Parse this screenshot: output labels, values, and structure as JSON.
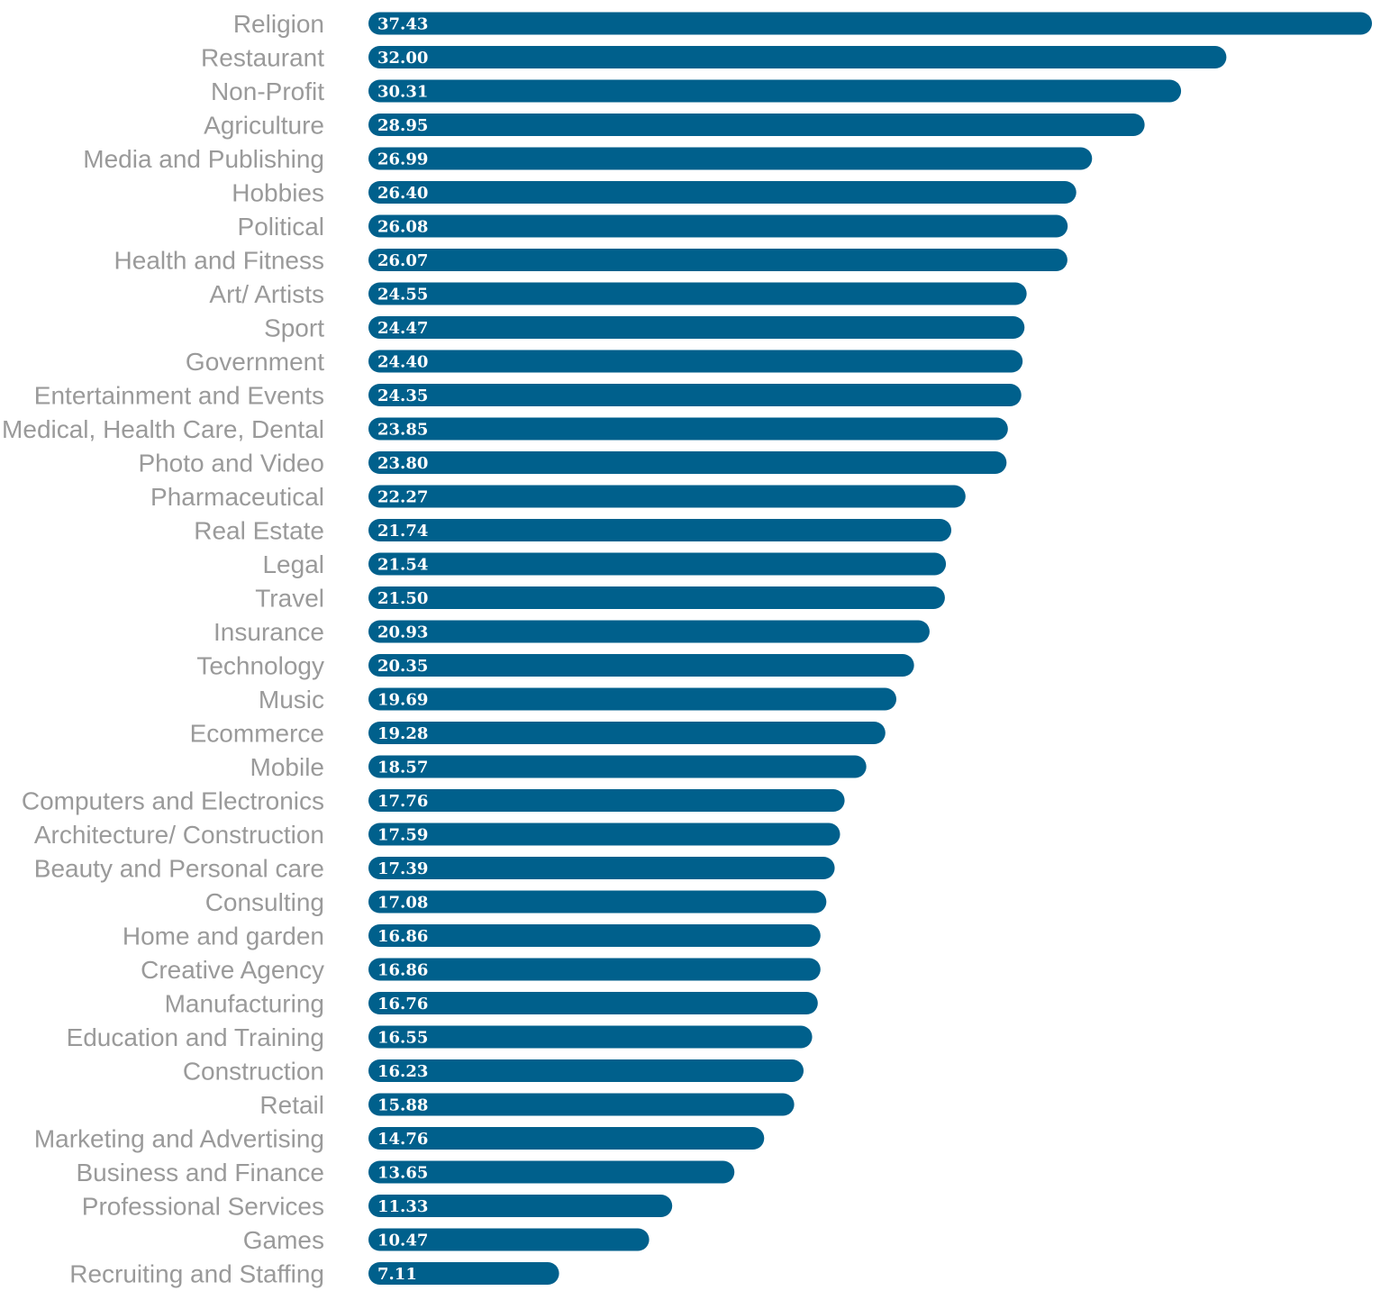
{
  "chart_data": {
    "type": "bar",
    "orientation": "horizontal",
    "title": "",
    "xlabel": "",
    "ylabel": "",
    "grid": false,
    "legend": "none",
    "bar_color": "#00608C",
    "label_color": "#9A9A9A",
    "value_label_color": "#FFFFFF",
    "xlim": [
      0,
      37.43
    ],
    "categories": [
      "Religion",
      "Restaurant",
      "Non-Profit",
      "Agriculture",
      "Media and Publishing",
      "Hobbies",
      "Political",
      "Health and Fitness",
      "Art/ Artists",
      "Sport",
      "Government",
      "Entertainment and Events",
      "Medical, Health Care, Dental",
      "Photo and Video",
      "Pharmaceutical",
      "Real Estate",
      "Legal",
      "Travel",
      "Insurance",
      "Technology",
      "Music",
      "Ecommerce",
      "Mobile",
      "Computers and Electronics",
      "Architecture/ Construction",
      "Beauty and Personal care",
      "Consulting",
      "Home and garden",
      "Creative Agency",
      "Manufacturing",
      "Education and Training",
      "Construction",
      "Retail",
      "Marketing and Advertising",
      "Business and Finance",
      "Professional Services",
      "Games",
      "Recruiting and Staffing"
    ],
    "values": [
      37.43,
      32.0,
      30.31,
      28.95,
      26.99,
      26.4,
      26.08,
      26.07,
      24.55,
      24.47,
      24.4,
      24.35,
      23.85,
      23.8,
      22.27,
      21.74,
      21.54,
      21.5,
      20.93,
      20.35,
      19.69,
      19.28,
      18.57,
      17.76,
      17.59,
      17.39,
      17.08,
      16.86,
      16.86,
      16.76,
      16.55,
      16.23,
      15.88,
      14.76,
      13.65,
      11.33,
      10.47,
      7.11
    ],
    "value_labels": [
      "37.43",
      "32.00",
      "30.31",
      "28.95",
      "26.99",
      "26.40",
      "26.08",
      "26.07",
      "24.55",
      "24.47",
      "24.40",
      "24.35",
      "23.85",
      "23.80",
      "22.27",
      "21.74",
      "21.54",
      "21.50",
      "20.93",
      "20.35",
      "19.69",
      "19.28",
      "18.57",
      "17.76",
      "17.59",
      "17.39",
      "17.08",
      "16.86",
      "16.86",
      "16.76",
      "16.55",
      "16.23",
      "15.88",
      "14.76",
      "13.65",
      "11.33",
      "10.47",
      "7.11"
    ]
  }
}
